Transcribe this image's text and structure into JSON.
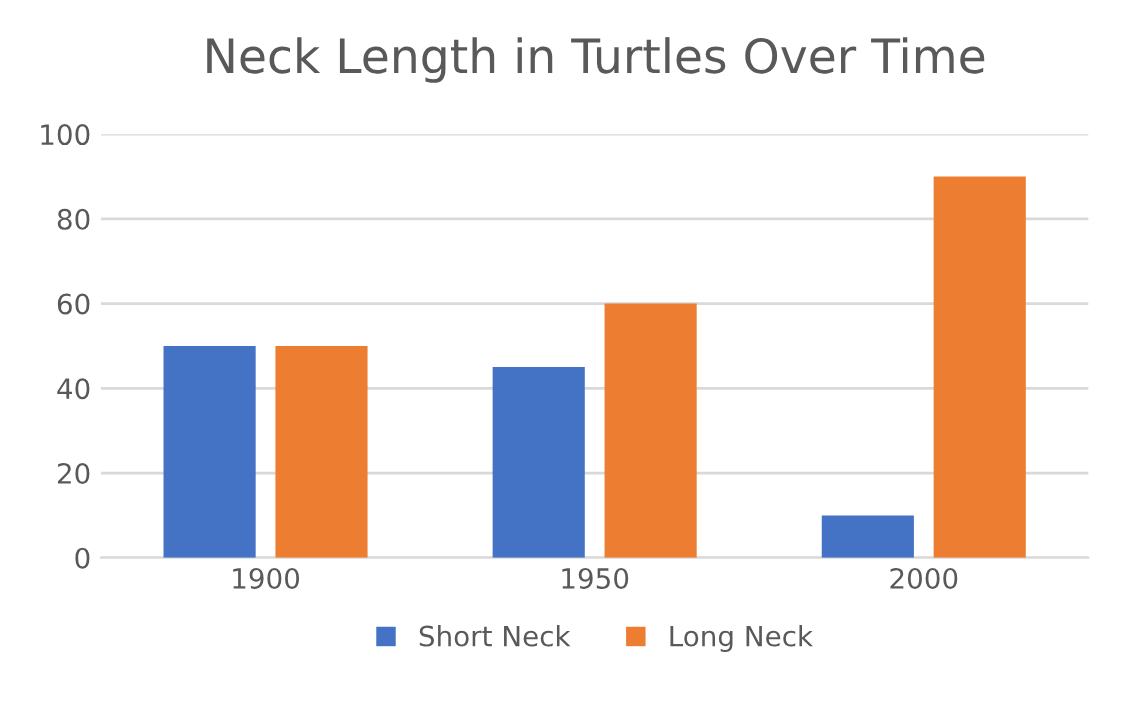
{
  "chart_data": {
    "type": "bar",
    "title": "Neck Length in Turtles Over Time",
    "categories": [
      "1900",
      "1950",
      "2000"
    ],
    "series": [
      {
        "name": "Short Neck",
        "color": "#4472c4",
        "values": [
          50,
          45,
          10
        ]
      },
      {
        "name": "Long Neck",
        "color": "#ed7d31",
        "values": [
          50,
          60,
          90
        ]
      }
    ],
    "ylim": [
      0,
      100
    ],
    "yticks": [
      0,
      20,
      40,
      60,
      80,
      100
    ],
    "grid": "y",
    "legend": "bottom"
  }
}
